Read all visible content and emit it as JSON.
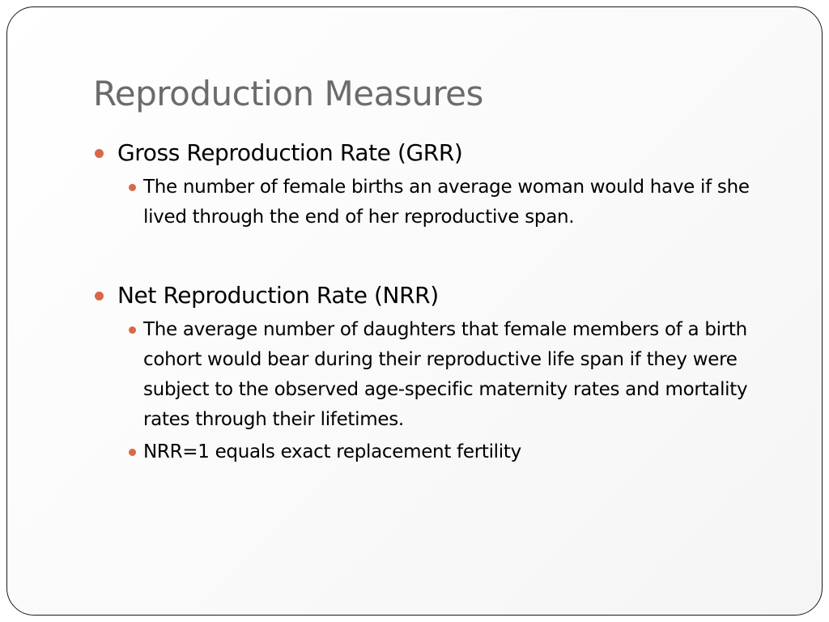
{
  "slide": {
    "title": "Reproduction Measures",
    "accent_color": "#d9674a",
    "title_color": "#6b6b6b",
    "bullets": [
      {
        "text": "Gross Reproduction Rate (GRR)",
        "sub": [
          {
            "text": "The number of female births an average woman would have if she lived through the end of her reproductive span."
          }
        ]
      },
      {
        "text": "Net Reproduction Rate (NRR)",
        "sub": [
          {
            "text": "The average number of daughters that female members of a birth cohort would bear during their reproductive life span if they were subject to the observed age-specific maternity rates and mortality rates through their lifetimes."
          },
          {
            "text": "NRR=1 equals exact replacement fertility"
          }
        ]
      }
    ]
  }
}
